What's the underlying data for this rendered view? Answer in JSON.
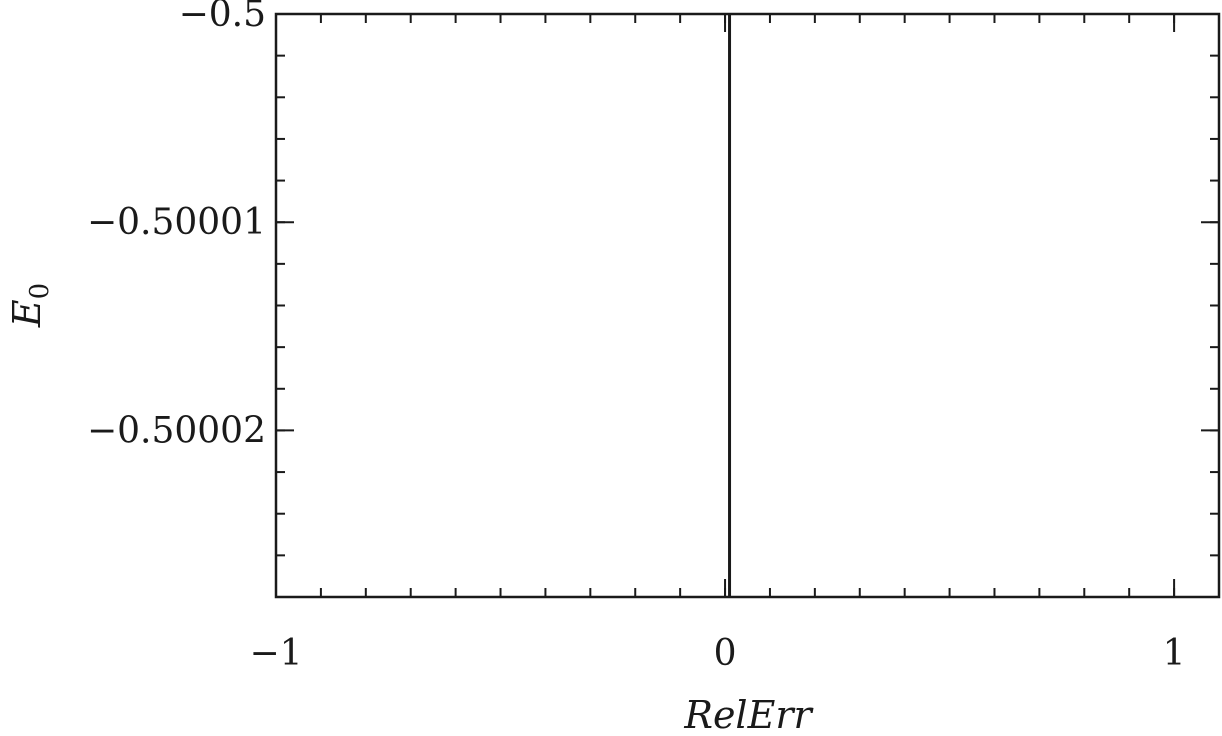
{
  "chart_data": {
    "type": "line",
    "title": "",
    "xlabel": "RelErr",
    "ylabel": "E",
    "ylabel_subscript": "0",
    "xlim": [
      -1,
      1.1
    ],
    "ylim": [
      -0.500028,
      -0.5
    ],
    "x_ticks": [
      {
        "value": -1,
        "label": "−1"
      },
      {
        "value": 0,
        "label": "0"
      },
      {
        "value": 1,
        "label": "1"
      }
    ],
    "y_ticks": [
      {
        "value": -0.5,
        "label": "−0.5"
      },
      {
        "value": -0.50001,
        "label": "−0.50001"
      },
      {
        "value": -0.50002,
        "label": "−0.50002"
      }
    ],
    "x_minor_step": 0.1,
    "y_minor_step": 2e-06,
    "grid": false,
    "series": [
      {
        "x": [
          0.01,
          0.01
        ],
        "y": [
          -0.5,
          -0.500028
        ],
        "color": "#1a1a1a"
      }
    ]
  }
}
